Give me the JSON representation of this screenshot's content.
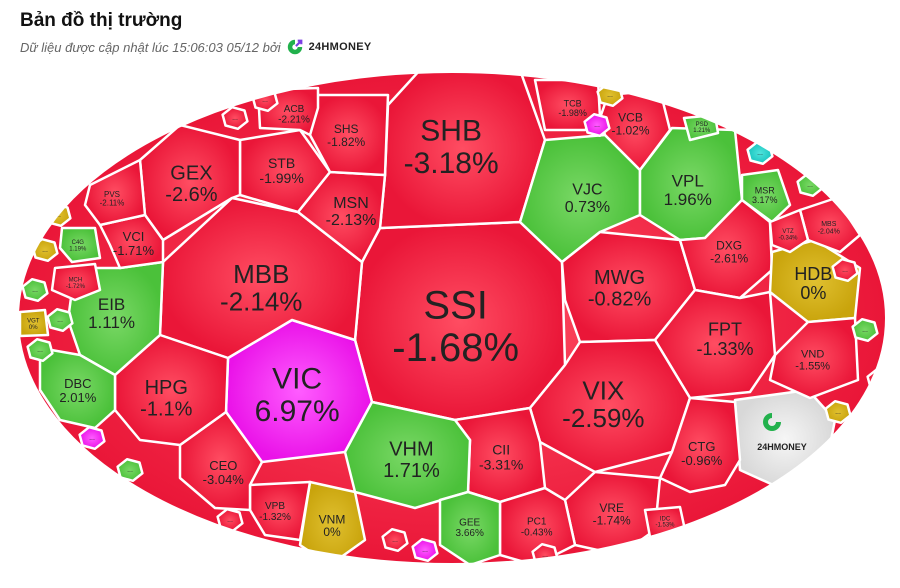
{
  "header": {
    "title": "Bản đồ thị trường",
    "subtitle": "Dữ liệu được cập nhật lúc 15:06:03 05/12 bởi",
    "brand": "24HMONEY"
  },
  "colors": {
    "up": "#5bcc47",
    "down": "#f2203f",
    "flat": "#d2ae12",
    "ceiling": "#f21ff0",
    "floor": "#22cfc9",
    "brand": "#e6e6e6",
    "brand_green": "#22b14c",
    "brand_purple": "#7b3fe4"
  },
  "cells": [
    {
      "ticker": "SSI",
      "change": "-1.68%",
      "status": "down"
    },
    {
      "ticker": "SHB",
      "change": "-3.18%",
      "status": "down"
    },
    {
      "ticker": "VIC",
      "change": "6.97%",
      "status": "ceiling"
    },
    {
      "ticker": "MBB",
      "change": "-2.14%",
      "status": "down"
    },
    {
      "ticker": "MSN",
      "change": "-2.13%",
      "status": "down"
    },
    {
      "ticker": "STB",
      "change": "-1.99%",
      "status": "down"
    },
    {
      "ticker": "GEX",
      "change": "-2.6%",
      "status": "down"
    },
    {
      "ticker": "SHS",
      "change": "-1.82%",
      "status": "down"
    },
    {
      "ticker": "ACB",
      "change": "-2.21%",
      "status": "down"
    },
    {
      "ticker": "VJC",
      "change": "0.73%",
      "status": "up"
    },
    {
      "ticker": "TCB",
      "change": "-1.98%",
      "status": "down"
    },
    {
      "ticker": "VCB",
      "change": "-1.02%",
      "status": "down"
    },
    {
      "ticker": "VPL",
      "change": "1.96%",
      "status": "up"
    },
    {
      "ticker": "MWG",
      "change": "-0.82%",
      "status": "down"
    },
    {
      "ticker": "DXG",
      "change": "-2.61%",
      "status": "down"
    },
    {
      "ticker": "HDB",
      "change": "0%",
      "status": "flat"
    },
    {
      "ticker": "FPT",
      "change": "-1.33%",
      "status": "down"
    },
    {
      "ticker": "VND",
      "change": "-1.55%",
      "status": "down"
    },
    {
      "ticker": "VIX",
      "change": "-2.59%",
      "status": "down"
    },
    {
      "ticker": "CII",
      "change": "-3.31%",
      "status": "down"
    },
    {
      "ticker": "VHM",
      "change": "1.71%",
      "status": "up"
    },
    {
      "ticker": "CTG",
      "change": "-0.96%",
      "status": "down"
    },
    {
      "ticker": "VRE",
      "change": "-1.74%",
      "status": "down"
    },
    {
      "ticker": "PC1",
      "change": "-0.43%",
      "status": "down"
    },
    {
      "ticker": "GEE",
      "change": "3.66%",
      "status": "up"
    },
    {
      "ticker": "VNM",
      "change": "0%",
      "status": "flat"
    },
    {
      "ticker": "VPB",
      "change": "-1.32%",
      "status": "down"
    },
    {
      "ticker": "CEO",
      "change": "-3.04%",
      "status": "down"
    },
    {
      "ticker": "HPG",
      "change": "-1.1%",
      "status": "down"
    },
    {
      "ticker": "EIB",
      "change": "1.11%",
      "status": "up"
    },
    {
      "ticker": "DBC",
      "change": "2.01%",
      "status": "up"
    },
    {
      "ticker": "VCI",
      "change": "-1.71%",
      "status": "down"
    },
    {
      "ticker": "PVS",
      "change": "-2.11%",
      "status": "down"
    },
    {
      "ticker": "C4G",
      "change": "1.19%",
      "status": "up"
    },
    {
      "ticker": "MCH",
      "change": "-1.72%",
      "status": "down"
    },
    {
      "ticker": "VGT",
      "change": "0%",
      "status": "flat"
    },
    {
      "ticker": "MSR",
      "change": "3.17%",
      "status": "up"
    },
    {
      "ticker": "MBS",
      "change": "-2.04%",
      "status": "down"
    },
    {
      "ticker": "VTZ",
      "change": "-0.34%",
      "status": "down"
    },
    {
      "ticker": "PSD",
      "change": "1.21%",
      "status": "up"
    },
    {
      "ticker": "IDC",
      "change": "-1.53%",
      "status": "down"
    }
  ],
  "small_cells": [
    {
      "label": "...",
      "status": "flat"
    },
    {
      "label": "...",
      "status": "flat"
    },
    {
      "label": "...",
      "status": "up"
    },
    {
      "label": "...",
      "status": "up"
    },
    {
      "label": "...",
      "status": "up"
    },
    {
      "label": "...",
      "status": "up"
    },
    {
      "label": "...",
      "status": "ceiling"
    },
    {
      "label": "...",
      "status": "ceiling"
    },
    {
      "label": "...",
      "status": "floor"
    },
    {
      "label": "...",
      "status": "down"
    },
    {
      "label": "...",
      "status": "up"
    },
    {
      "label": "...",
      "status": "down"
    },
    {
      "label": "...",
      "status": "down"
    },
    {
      "label": "...",
      "status": "down"
    },
    {
      "label": "...",
      "status": "flat"
    },
    {
      "label": "...",
      "status": "up"
    },
    {
      "label": "...",
      "status": "ceiling"
    },
    {
      "label": "...",
      "status": "down"
    },
    {
      "label": "...",
      "status": "down"
    },
    {
      "label": "...",
      "status": "up"
    },
    {
      "label": "...",
      "status": "flat"
    },
    {
      "label": "...",
      "status": "down"
    },
    {
      "label": "...",
      "status": "up"
    },
    {
      "label": "...",
      "status": "down"
    }
  ]
}
